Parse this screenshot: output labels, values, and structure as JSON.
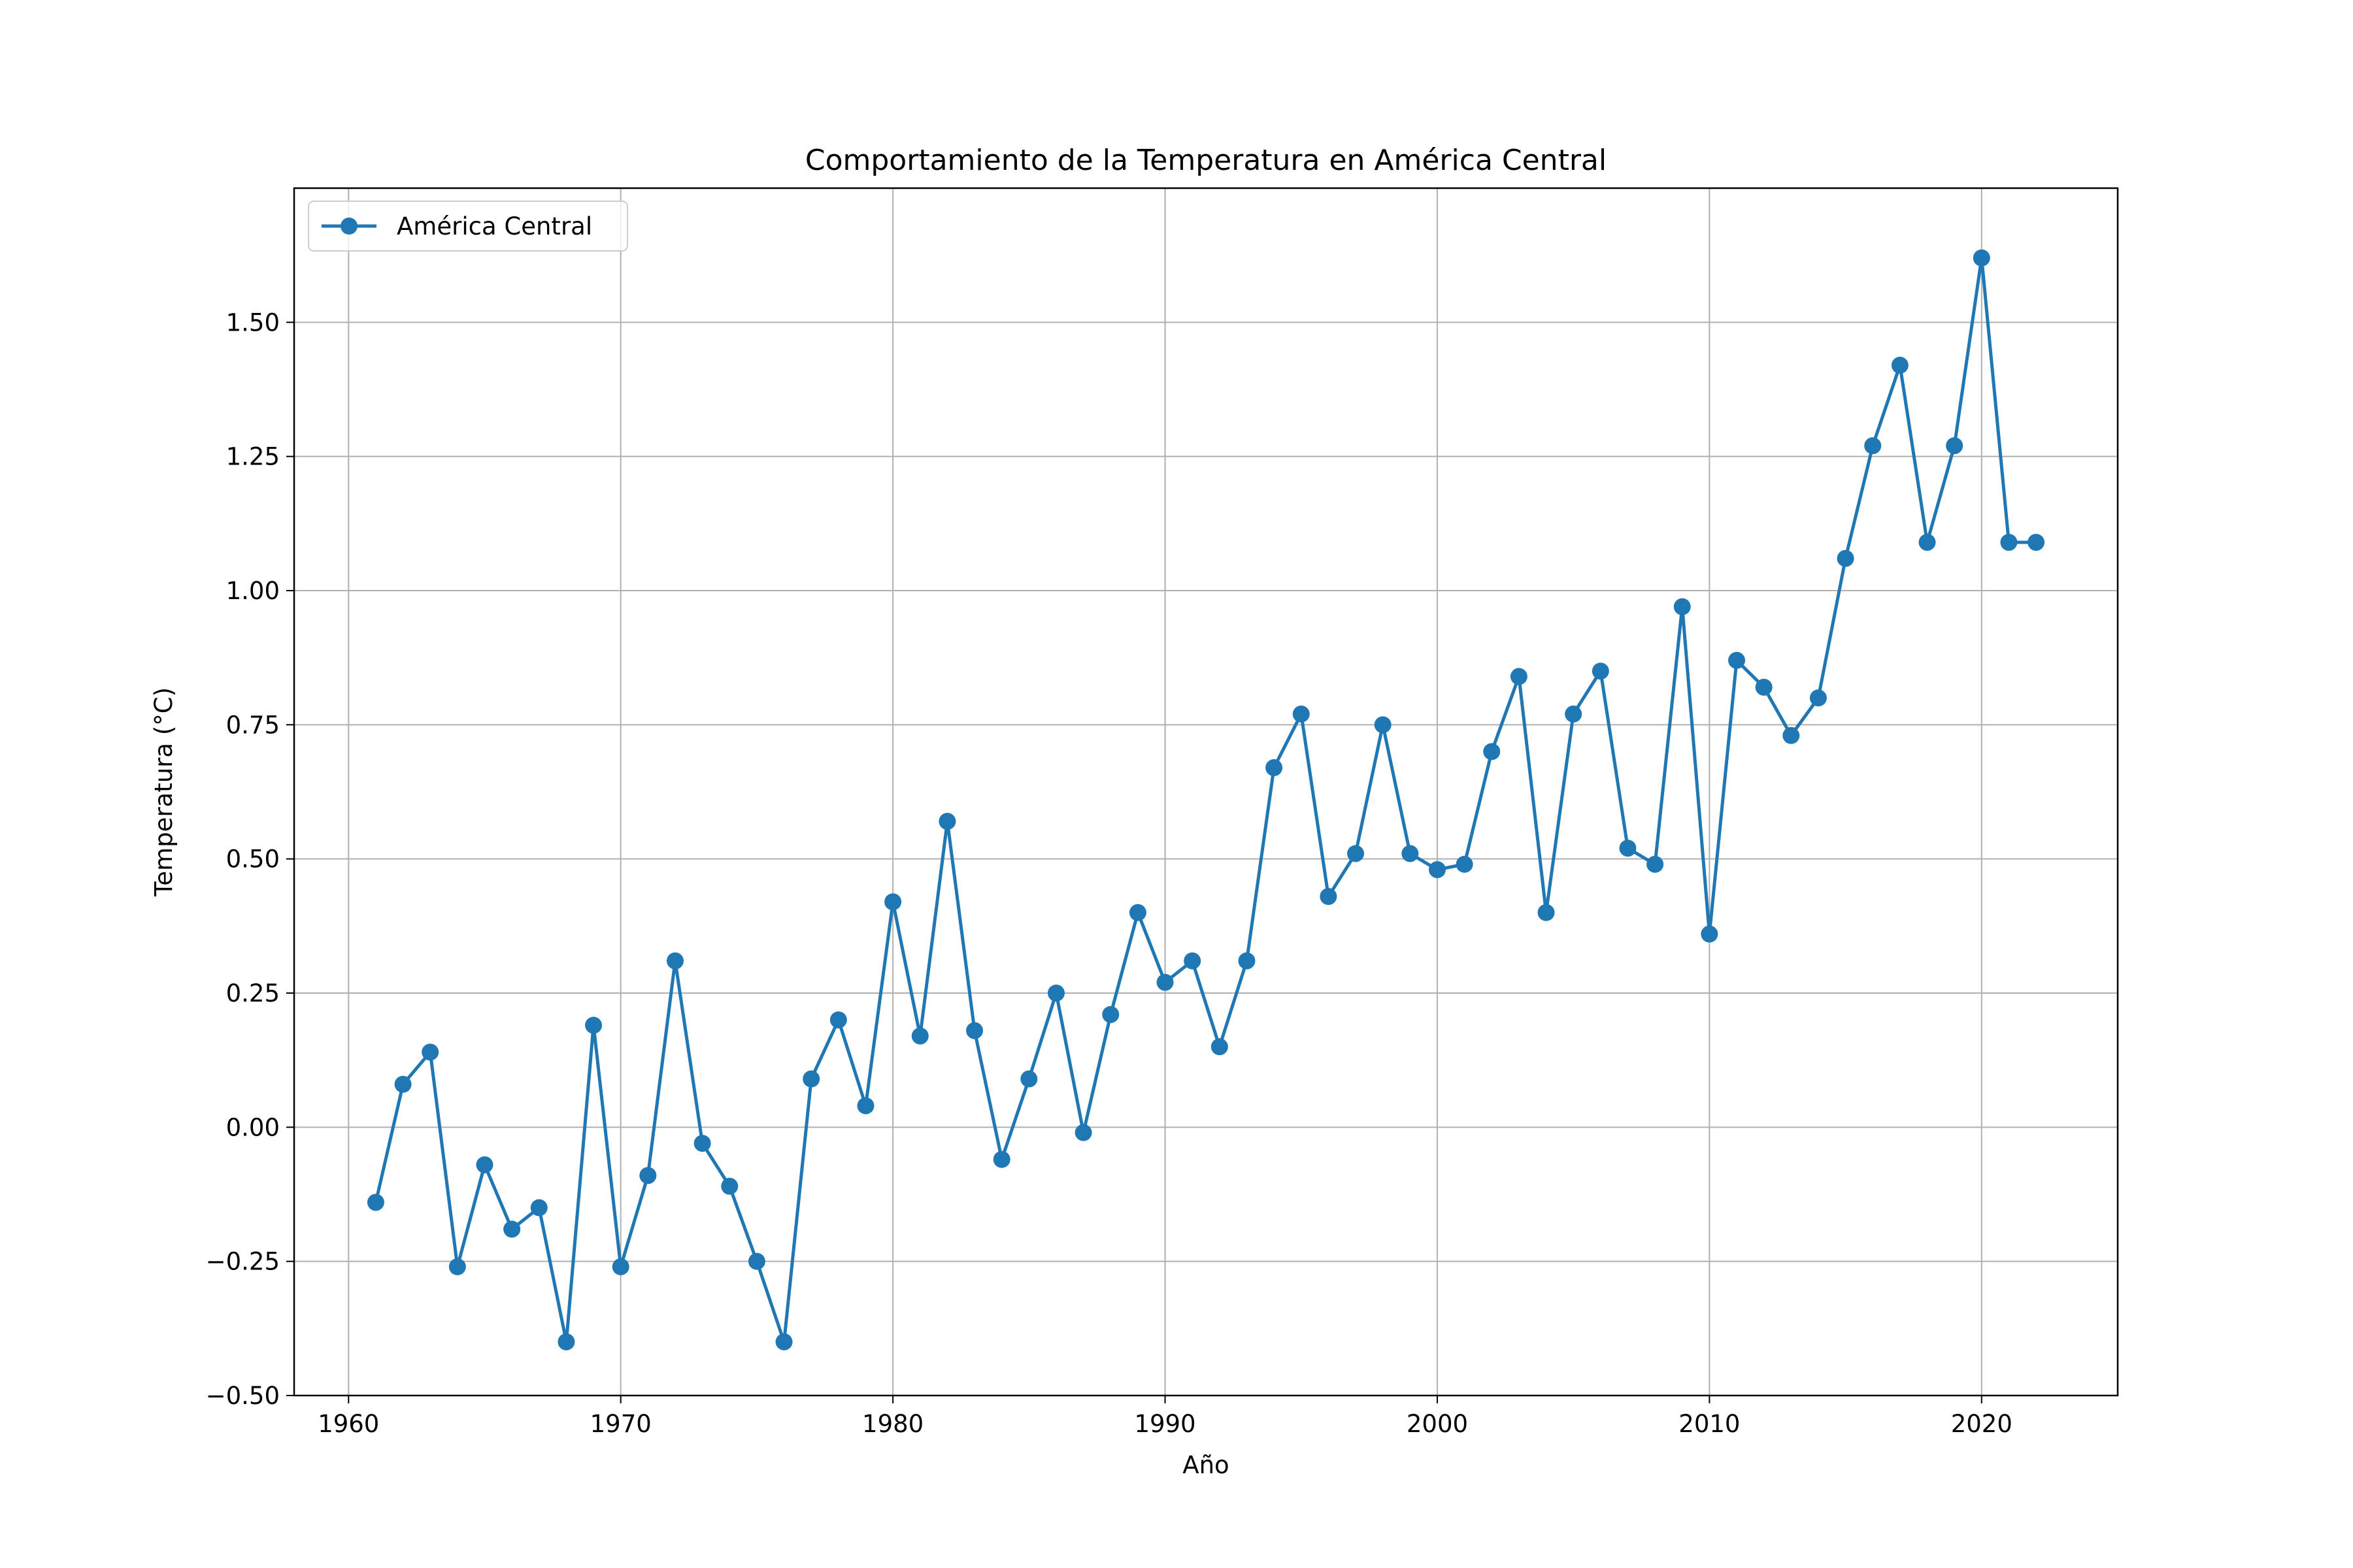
{
  "chart_data": {
    "type": "line",
    "title": "Comportamiento de la Temperatura en América Central",
    "xlabel": "Año",
    "ylabel": "Temperatura (°C)",
    "xlim": [
      1958,
      2025
    ],
    "ylim": [
      -0.5,
      1.75
    ],
    "xticks": [
      1960,
      1970,
      1980,
      1990,
      2000,
      2010,
      2020
    ],
    "xtick_labels": [
      "1960",
      "1970",
      "1980",
      "1990",
      "2000",
      "2010",
      "2020"
    ],
    "yticks": [
      -0.5,
      -0.25,
      0.0,
      0.25,
      0.5,
      0.75,
      1.0,
      1.25,
      1.5
    ],
    "ytick_labels": [
      "−0.50",
      "−0.25",
      "0.00",
      "0.25",
      "0.50",
      "0.75",
      "1.00",
      "1.25",
      "1.50"
    ],
    "grid": true,
    "legend_position": "top-left",
    "series": [
      {
        "name": "América Central",
        "color": "#1f77b4",
        "marker": "circle",
        "x": [
          1961,
          1962,
          1963,
          1964,
          1965,
          1966,
          1967,
          1968,
          1969,
          1970,
          1971,
          1972,
          1973,
          1974,
          1975,
          1976,
          1977,
          1978,
          1979,
          1980,
          1981,
          1982,
          1983,
          1984,
          1985,
          1986,
          1987,
          1988,
          1989,
          1990,
          1991,
          1992,
          1993,
          1994,
          1995,
          1996,
          1997,
          1998,
          1999,
          2000,
          2001,
          2002,
          2003,
          2004,
          2005,
          2006,
          2007,
          2008,
          2009,
          2010,
          2011,
          2012,
          2013,
          2014,
          2015,
          2016,
          2017,
          2018,
          2019,
          2020,
          2021,
          2022
        ],
        "y": [
          -0.14,
          0.08,
          0.14,
          -0.26,
          -0.07,
          -0.19,
          -0.15,
          -0.4,
          0.19,
          -0.26,
          -0.09,
          0.31,
          -0.03,
          -0.11,
          -0.25,
          -0.4,
          0.09,
          0.2,
          0.04,
          0.42,
          0.17,
          0.57,
          0.18,
          -0.06,
          0.09,
          0.25,
          -0.01,
          0.21,
          0.4,
          0.27,
          0.31,
          0.15,
          0.31,
          0.67,
          0.77,
          0.43,
          0.51,
          0.75,
          0.51,
          0.48,
          0.49,
          0.7,
          0.84,
          0.4,
          0.77,
          0.85,
          0.52,
          0.49,
          0.97,
          0.36,
          0.87,
          0.82,
          0.73,
          0.8,
          1.06,
          1.27,
          1.42,
          1.09,
          1.27,
          1.62,
          1.09,
          1.09
        ]
      }
    ]
  }
}
